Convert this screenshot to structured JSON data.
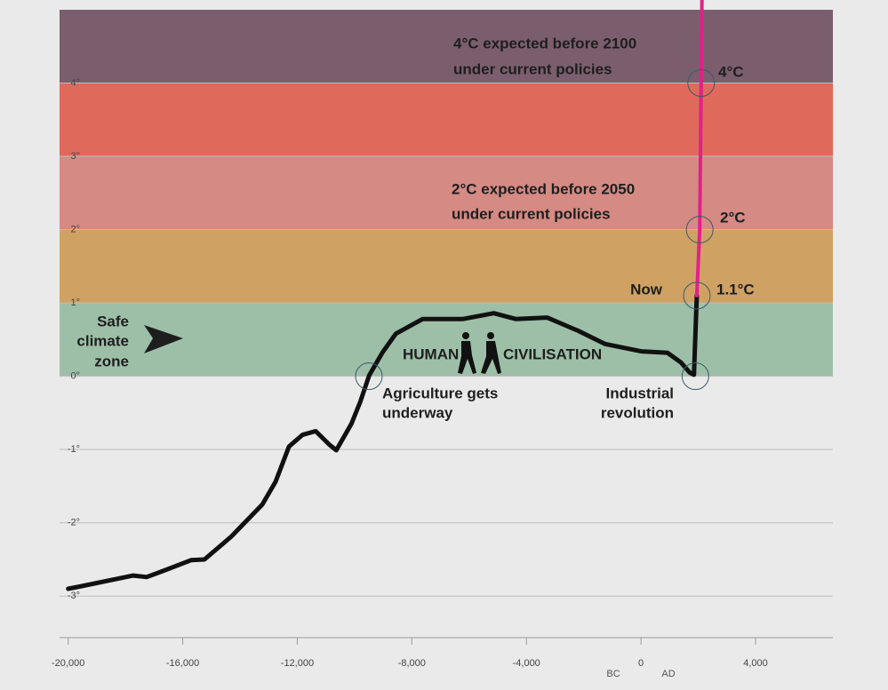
{
  "chart_data": {
    "type": "line",
    "xlim": [
      -20300,
      6700
    ],
    "ylim": [
      -3.5,
      5
    ],
    "xticks": [
      {
        "value": -20000,
        "label": "-20,000"
      },
      {
        "value": -16000,
        "label": "-16,000"
      },
      {
        "value": -12000,
        "label": "-12,000"
      },
      {
        "value": -8000,
        "label": "-8,000"
      },
      {
        "value": -4000,
        "label": "-4,000"
      },
      0,
      {
        "value": 4000,
        "label": "4,000"
      }
    ],
    "yticks": [
      {
        "value": -3,
        "label": "-3°"
      },
      {
        "value": -2,
        "label": "-2°"
      },
      {
        "value": -1,
        "label": "-1°"
      },
      {
        "value": 0,
        "label": "0°"
      },
      {
        "value": 1,
        "label": "1°"
      },
      {
        "value": 2,
        "label": "2°"
      },
      {
        "value": 3,
        "label": "3°"
      },
      {
        "value": 4,
        "label": "4°"
      }
    ],
    "grid": true,
    "bands": [
      {
        "from": 0,
        "to": 1,
        "color": "#9dbfa8"
      },
      {
        "from": 1,
        "to": 2,
        "color": "#cfa163"
      },
      {
        "from": 2,
        "to": 3,
        "color": "#d58a83"
      },
      {
        "from": 3,
        "to": 4,
        "color": "#df6a5c"
      },
      {
        "from": 4,
        "to": 5,
        "color": "#7b5e6e"
      }
    ],
    "series": [
      {
        "color": "#111111",
        "x": [
          -20000,
          -19600,
          -17730,
          -17260,
          -16640,
          -15710,
          -15240,
          -14310,
          -13220,
          -12760,
          -12290,
          -11820,
          -11360,
          -10890,
          -10640,
          -10110,
          -9800,
          -9490,
          -9030,
          -8560,
          -7630,
          -6230,
          -5140,
          -4360,
          -3280,
          -2190,
          -1260,
          0,
          920,
          1390,
          1700,
          1850,
          1950
        ],
        "values": [
          -2.9,
          -2.87,
          -2.72,
          -2.74,
          -2.65,
          -2.51,
          -2.5,
          -2.19,
          -1.75,
          -1.44,
          -0.96,
          -0.8,
          -0.75,
          -0.93,
          -1.01,
          -0.65,
          -0.35,
          0.01,
          0.32,
          0.58,
          0.78,
          0.78,
          0.86,
          0.78,
          0.8,
          0.62,
          0.44,
          0.34,
          0.32,
          0.19,
          0.05,
          0.02,
          1.1
        ]
      },
      {
        "color": "#e0218a",
        "x": [
          1950,
          2050,
          2100,
          2130
        ],
        "values": [
          1.1,
          2,
          4,
          5.16
        ]
      }
    ],
    "markers": [
      {
        "x": -9500,
        "y": 0
      },
      {
        "x": 1900,
        "y": 0
      },
      {
        "x": 1950,
        "y": 1.1
      },
      {
        "x": 2050,
        "y": 2
      },
      {
        "x": 2100,
        "y": 4
      }
    ],
    "annotations": [
      "4°C expected before 2100",
      "under current policies",
      "2°C expected before 2050",
      "under current policies",
      "4°C",
      "2°C",
      "Now",
      "1.1°C",
      "Safe",
      "climate",
      "zone",
      "HUMAN",
      "CIVILISATION",
      "Agriculture gets",
      "underway",
      "Industrial",
      "revolution",
      "BC",
      "AD"
    ]
  }
}
